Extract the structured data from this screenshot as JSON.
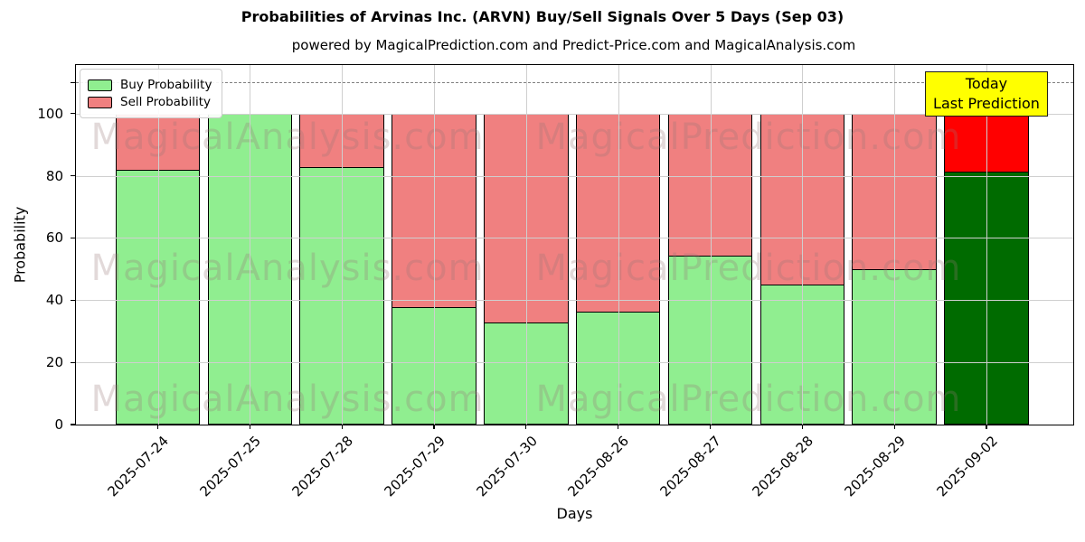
{
  "chart_data": {
    "type": "bar",
    "stacked": true,
    "title": "Probabilities of Arvinas Inc. (ARVN) Buy/Sell Signals Over 5 Days (Sep 03)",
    "subtitle": "powered by MagicalPrediction.com and Predict-Price.com and MagicalAnalysis.com",
    "xlabel": "Days",
    "ylabel": "Probability",
    "categories": [
      "2025-07-24",
      "2025-07-25",
      "2025-07-28",
      "2025-07-29",
      "2025-07-30",
      "2025-08-26",
      "2025-08-27",
      "2025-08-28",
      "2025-08-29",
      "2025-09-02"
    ],
    "series": [
      {
        "name": "Buy Probability",
        "color": "#90EE90",
        "values": [
          82,
          100,
          83,
          38,
          33,
          36.5,
          54.5,
          45,
          50,
          81.5
        ]
      },
      {
        "name": "Sell Probability",
        "color": "#F08080",
        "values": [
          18,
          0,
          17,
          62,
          67,
          63.5,
          45.5,
          55,
          50,
          18.5
        ]
      }
    ],
    "today_bar": {
      "index": 9,
      "buy_color": "#006B00",
      "sell_color": "#FF0000"
    },
    "ylim": [
      0,
      115.6
    ],
    "yticks": [
      0,
      20,
      40,
      60,
      80,
      100
    ],
    "extra_unlabeled_ytick": 110,
    "dashed_line_y": 110,
    "dashed_line_color": "#808080",
    "grid": true,
    "legend_position": "upper left",
    "bar_edge_color": "#000000"
  },
  "annotation": {
    "line1": "Today",
    "line2": "Last Prediction",
    "bg_color": "#ffff00"
  },
  "watermarks": [
    "MagicalAnalysis.com",
    "MagicalPrediction.com"
  ]
}
